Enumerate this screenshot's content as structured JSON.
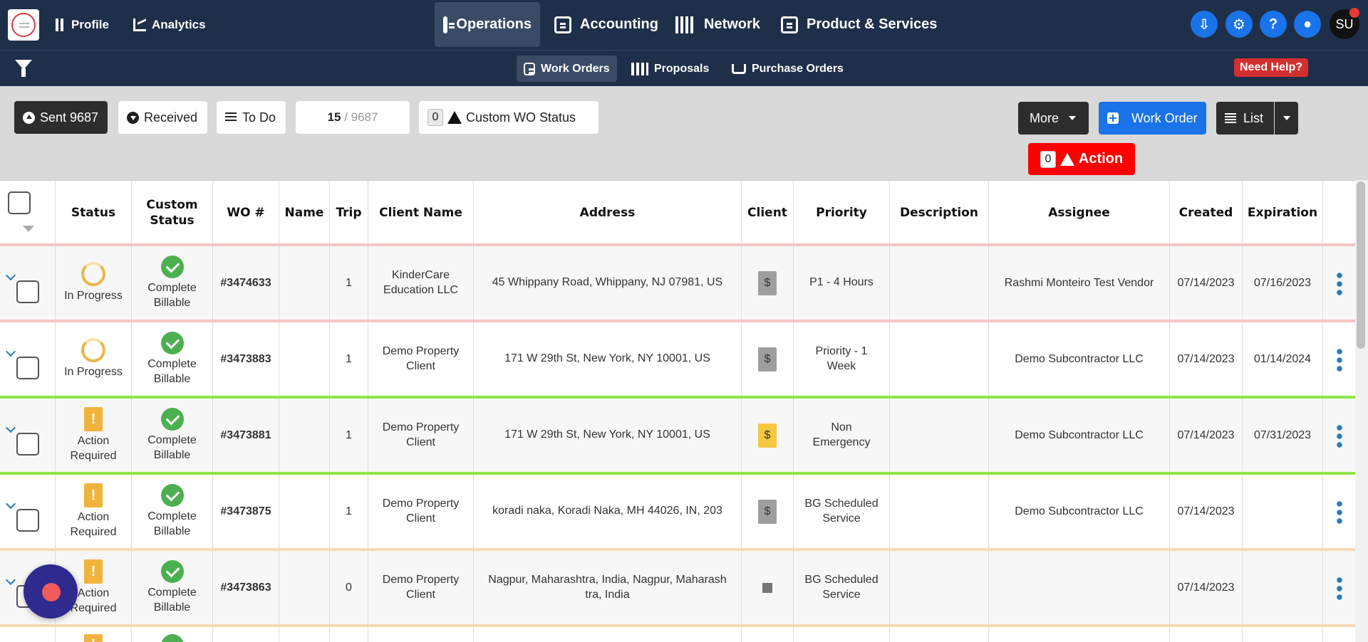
{
  "nav": {
    "left": [
      {
        "label": "Profile",
        "icon": "building-icon"
      },
      {
        "label": "Analytics",
        "icon": "line-chart-icon"
      }
    ],
    "main": [
      {
        "label": "Operations",
        "icon": "clipboard-icon",
        "active": true
      },
      {
        "label": "Accounting",
        "icon": "money-icon"
      },
      {
        "label": "Network",
        "icon": "network-icon"
      },
      {
        "label": "Product & Services",
        "icon": "briefcase-icon"
      }
    ],
    "right_icons": [
      "download-icon",
      "gear-icon",
      "help-icon",
      "chat-icon"
    ],
    "avatar_initials": "SU"
  },
  "subnav": {
    "tabs": [
      {
        "label": "Work Orders",
        "active": true
      },
      {
        "label": "Proposals"
      },
      {
        "label": "Purchase Orders"
      }
    ],
    "need_help": "Need Help?"
  },
  "toolbar": {
    "sent_label": "Sent 9687",
    "received_label": "Received",
    "todo_label": "To Do",
    "page_current": "15",
    "page_sep": " / ",
    "page_total": "9687",
    "custom_wo_count": "0",
    "custom_wo_label": "Custom WO Status",
    "more_label": "More",
    "work_order_label": "Work Order",
    "list_label": "List",
    "action_count": "0",
    "action_label": "Action"
  },
  "columns": [
    "Status",
    "Custom Status",
    "WO #",
    "Name",
    "Trip",
    "Client Name",
    "Address",
    "Client",
    "Priority",
    "Description",
    "Assignee",
    "Created",
    "Expiration"
  ],
  "columns_custom_status": [
    "Custom",
    "Status"
  ],
  "rows": [
    {
      "status1": "In Progress",
      "status2": "",
      "custom1": "Complete",
      "custom2": "Billable",
      "wo": "#3474633",
      "name": "",
      "trip": "1",
      "client1": "KinderCare",
      "client2": "Education LLC",
      "address1": "45 Whippany Road, Whippany, NJ 07981, US",
      "address2": "",
      "priority1": "P1 - 4 Hours",
      "priority2": "",
      "assignee": "Rashmi Monteiro Test Vendor",
      "created": "07/14/2023",
      "expiration": "07/16/2023"
    },
    {
      "status1": "In Progress",
      "status2": "",
      "custom1": "Complete",
      "custom2": "Billable",
      "wo": "#3473883",
      "name": "",
      "trip": "1",
      "client1": "Demo Property",
      "client2": "Client",
      "address1": "171 W 29th St, New York, NY 10001, US",
      "address2": "",
      "priority1": "Priority - 1",
      "priority2": "Week",
      "assignee": "Demo Subcontractor LLC",
      "created": "07/14/2023",
      "expiration": "01/14/2024"
    },
    {
      "status1": "Action",
      "status2": "Required",
      "custom1": "Complete",
      "custom2": "Billable",
      "wo": "#3473881",
      "name": "",
      "trip": "1",
      "client1": "Demo Property",
      "client2": "Client",
      "address1": "171 W 29th St, New York, NY 10001, US",
      "address2": "",
      "priority1": "Non",
      "priority2": "Emergency",
      "assignee": "Demo Subcontractor LLC",
      "created": "07/14/2023",
      "expiration": "07/31/2023"
    },
    {
      "status1": "Action",
      "status2": "Required",
      "custom1": "Complete",
      "custom2": "Billable",
      "wo": "#3473875",
      "name": "",
      "trip": "1",
      "client1": "Demo Property",
      "client2": "Client",
      "address1": "koradi naka, Koradi Naka, MH 44026, IN, 203",
      "address2": "",
      "priority1": "BG Scheduled",
      "priority2": "Service",
      "assignee": "Demo Subcontractor LLC",
      "created": "07/14/2023",
      "expiration": ""
    },
    {
      "status1": "Action",
      "status2": "Required",
      "custom1": "Complete",
      "custom2": "Billable",
      "wo": "#3473863",
      "name": "",
      "trip": "0",
      "client1": "Demo Property",
      "client2": "Client",
      "address1": "Nagpur, Maharashtra, India, Nagpur, Maharash",
      "address2": "tra, India",
      "priority1": "BG Scheduled",
      "priority2": "Service",
      "assignee": "",
      "created": "07/14/2023",
      "expiration": ""
    }
  ]
}
